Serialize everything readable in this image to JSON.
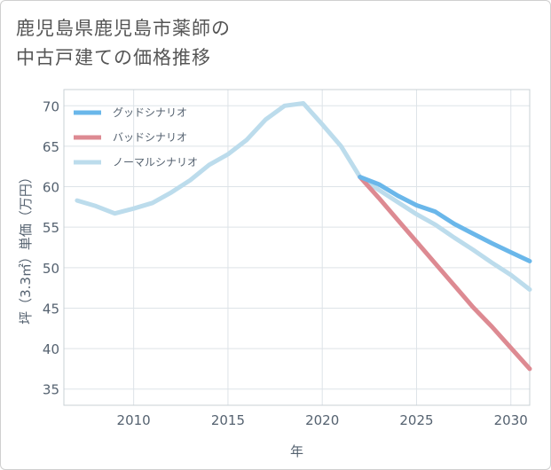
{
  "title_lines": [
    "鹿児島県鹿児島市薬師の",
    "中古戸建ての価格推移"
  ],
  "chart_data": {
    "type": "line",
    "xlabel": "年",
    "ylabel": "坪（3.3㎡）単価（万円）",
    "xlim": [
      2006.3,
      2031
    ],
    "ylim": [
      33,
      72
    ],
    "xticks": [
      2010,
      2015,
      2020,
      2025,
      2030
    ],
    "yticks": [
      35,
      40,
      45,
      50,
      55,
      60,
      65,
      70
    ],
    "grid": true,
    "legend_position": "top-left",
    "series": [
      {
        "name": "グッドシナリオ",
        "color": "#6ab7ea",
        "x": [
          2022,
          2023,
          2024,
          2025,
          2026,
          2027,
          2028,
          2029,
          2030,
          2031
        ],
        "y": [
          61.2,
          60.3,
          58.9,
          57.7,
          56.9,
          55.4,
          54.2,
          53.0,
          51.9,
          50.8
        ]
      },
      {
        "name": "バッドシナリオ",
        "color": "#dd8a92",
        "x": [
          2022,
          2023,
          2024,
          2025,
          2026,
          2027,
          2028,
          2029,
          2030,
          2031
        ],
        "y": [
          61.2,
          58.6,
          55.9,
          53.2,
          50.5,
          47.8,
          45.1,
          42.7,
          40.1,
          37.5
        ]
      },
      {
        "name": "ノーマルシナリオ",
        "color": "#bcdcec",
        "x": [
          2007,
          2008,
          2009,
          2010,
          2011,
          2012,
          2013,
          2014,
          2015,
          2016,
          2017,
          2018,
          2019,
          2020,
          2021,
          2022,
          2023,
          2024,
          2025,
          2026,
          2027,
          2028,
          2029,
          2030,
          2031
        ],
        "y": [
          58.3,
          57.6,
          56.7,
          57.3,
          58.0,
          59.3,
          60.8,
          62.7,
          64.0,
          65.8,
          68.3,
          70.0,
          70.3,
          67.7,
          65.0,
          61.2,
          59.6,
          58.1,
          56.6,
          55.3,
          53.7,
          52.2,
          50.6,
          49.1,
          47.3
        ]
      }
    ]
  }
}
